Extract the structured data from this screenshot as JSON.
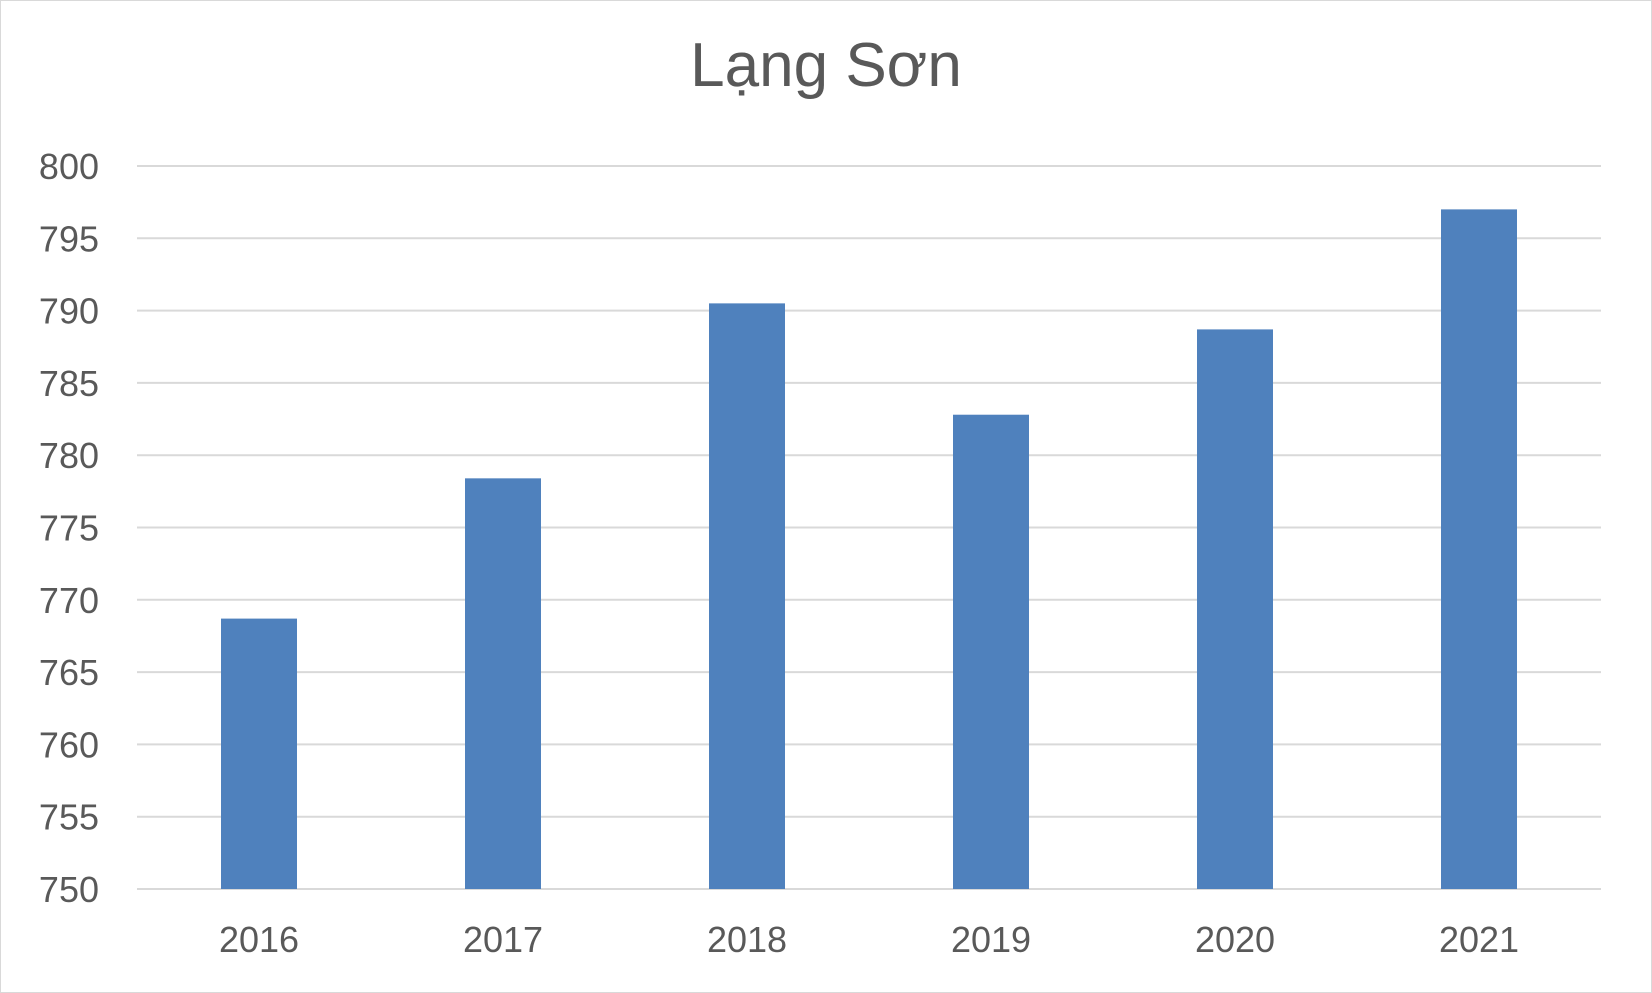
{
  "chart_data": {
    "type": "bar",
    "title": "Lạng Sơn",
    "categories": [
      "2016",
      "2017",
      "2018",
      "2019",
      "2020",
      "2021"
    ],
    "values": [
      768.7,
      778.4,
      790.5,
      782.8,
      788.7,
      797.0
    ],
    "xlabel": "",
    "ylabel": "",
    "ylim": [
      750,
      800
    ],
    "yticks": [
      "750",
      "755",
      "760",
      "765",
      "770",
      "775",
      "780",
      "785",
      "790",
      "795",
      "800"
    ],
    "grid": true,
    "legend": "none",
    "colors": {
      "bar": "#4F81BD",
      "grid": "#D9D9D9",
      "text": "#595959"
    }
  }
}
